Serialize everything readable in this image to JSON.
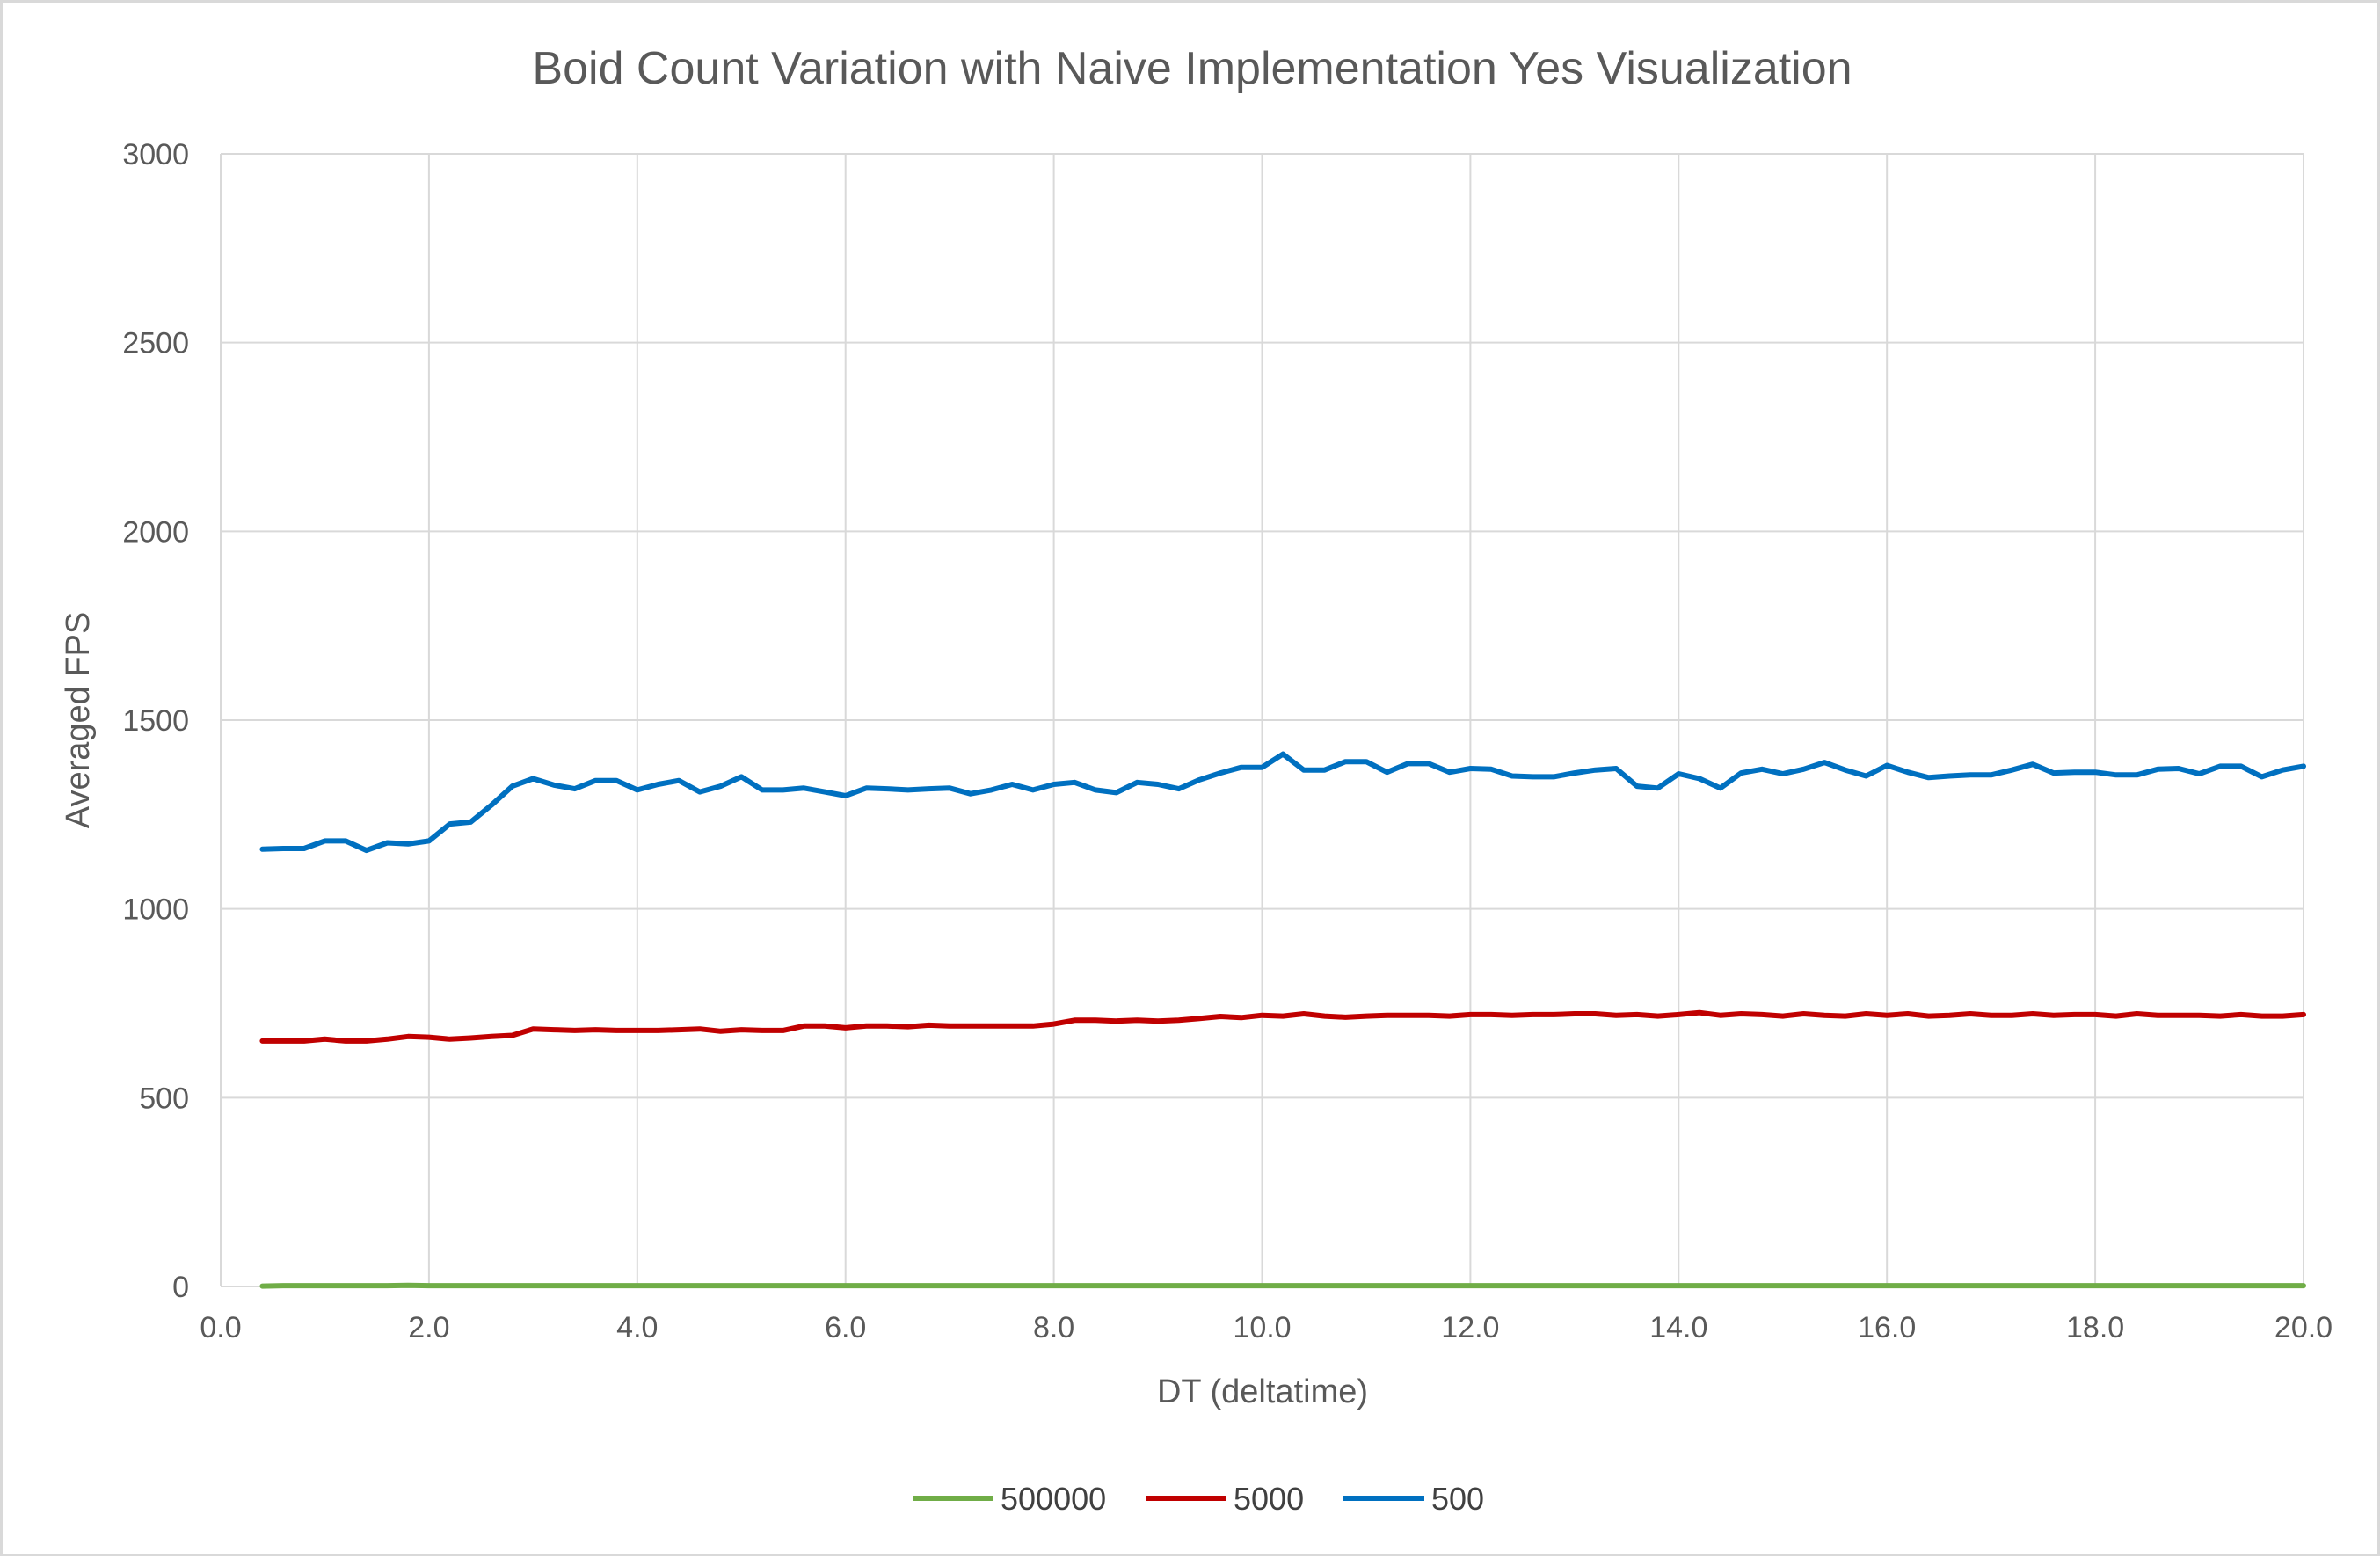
{
  "chart_data": {
    "type": "line",
    "title": "Boid Count Variation with Naive Implementation Yes Visualization",
    "xlabel": "DT (deltatime)",
    "ylabel": "Averaged FPS",
    "xlim": [
      0,
      20
    ],
    "ylim": [
      0,
      3000
    ],
    "x_ticks": [
      "0.0",
      "2.0",
      "4.0",
      "6.0",
      "8.0",
      "10.0",
      "12.0",
      "14.0",
      "16.0",
      "18.0",
      "20.0"
    ],
    "y_ticks": [
      "0",
      "500",
      "1000",
      "1500",
      "2000",
      "2500",
      "3000"
    ],
    "grid": true,
    "legend_position": "bottom",
    "x": [
      0.4,
      0.6,
      0.8,
      1.0,
      1.2,
      1.4,
      1.6,
      1.8,
      2.0,
      2.2,
      2.4,
      2.6,
      2.8,
      3.0,
      3.2,
      3.4,
      3.6,
      3.8,
      4.0,
      4.2,
      4.4,
      4.6,
      4.8,
      5.0,
      5.2,
      5.4,
      5.6,
      5.8,
      6.0,
      6.2,
      6.4,
      6.6,
      6.8,
      7.0,
      7.2,
      7.4,
      7.6,
      7.8,
      8.0,
      8.2,
      8.4,
      8.6,
      8.8,
      9.0,
      9.2,
      9.4,
      9.6,
      9.8,
      10.0,
      10.2,
      10.4,
      10.6,
      10.8,
      11.0,
      11.2,
      11.4,
      11.6,
      11.8,
      12.0,
      12.2,
      12.4,
      12.6,
      12.8,
      13.0,
      13.2,
      13.4,
      13.6,
      13.8,
      14.0,
      14.2,
      14.4,
      14.6,
      14.8,
      15.0,
      15.2,
      15.4,
      15.6,
      15.8,
      16.0,
      16.2,
      16.4,
      16.6,
      16.8,
      17.0,
      17.2,
      17.4,
      17.6,
      17.8,
      18.0,
      18.2,
      18.4,
      18.6,
      18.8,
      19.0,
      19.2,
      19.4,
      19.6,
      19.8,
      20.0
    ],
    "series": [
      {
        "name": "500000",
        "color": "#70ad47",
        "values": [
          1,
          2,
          2,
          2,
          2,
          2,
          2,
          3,
          2,
          2,
          2,
          2,
          2,
          2,
          2,
          2,
          2,
          2,
          2,
          2,
          2,
          2,
          2,
          2,
          2,
          2,
          2,
          2,
          2,
          2,
          2,
          2,
          2,
          2,
          2,
          2,
          2,
          2,
          2,
          2,
          2,
          2,
          2,
          2,
          2,
          2,
          2,
          2,
          2,
          2,
          2,
          2,
          2,
          2,
          2,
          2,
          2,
          2,
          2,
          2,
          2,
          2,
          2,
          2,
          2,
          2,
          2,
          2,
          2,
          2,
          2,
          2,
          2,
          2,
          2,
          2,
          2,
          2,
          2,
          2,
          2,
          2,
          2,
          2,
          2,
          2,
          2,
          2,
          2,
          2,
          2,
          2,
          2,
          2,
          2,
          2,
          2,
          2,
          2
        ]
      },
      {
        "name": "5000",
        "color": "#c00000",
        "values": [
          650,
          650,
          650,
          655,
          650,
          650,
          655,
          662,
          660,
          655,
          658,
          662,
          665,
          682,
          680,
          678,
          680,
          678,
          678,
          678,
          680,
          682,
          676,
          680,
          678,
          678,
          690,
          690,
          685,
          690,
          690,
          688,
          692,
          690,
          690,
          690,
          690,
          690,
          695,
          705,
          705,
          703,
          705,
          703,
          705,
          710,
          715,
          712,
          718,
          716,
          722,
          716,
          713,
          716,
          718,
          718,
          718,
          716,
          720,
          720,
          718,
          720,
          720,
          722,
          722,
          718,
          720,
          716,
          720,
          725,
          718,
          722,
          720,
          716,
          722,
          718,
          716,
          722,
          718,
          722,
          716,
          718,
          722,
          718,
          718,
          722,
          718,
          720,
          720,
          716,
          722,
          718,
          718,
          718,
          716,
          720,
          716,
          716,
          720
        ]
      },
      {
        "name": "500",
        "color": "#0070c0",
        "values": [
          1158,
          1160,
          1160,
          1180,
          1180,
          1155,
          1175,
          1172,
          1180,
          1225,
          1230,
          1275,
          1325,
          1345,
          1328,
          1318,
          1340,
          1340,
          1315,
          1330,
          1340,
          1310,
          1325,
          1350,
          1315,
          1315,
          1320,
          1310,
          1300,
          1320,
          1318,
          1315,
          1318,
          1320,
          1305,
          1315,
          1330,
          1315,
          1330,
          1335,
          1315,
          1308,
          1335,
          1330,
          1318,
          1342,
          1360,
          1375,
          1375,
          1410,
          1368,
          1368,
          1390,
          1390,
          1362,
          1385,
          1385,
          1362,
          1372,
          1370,
          1352,
          1350,
          1350,
          1360,
          1368,
          1372,
          1325,
          1320,
          1358,
          1345,
          1320,
          1360,
          1370,
          1358,
          1370,
          1388,
          1368,
          1352,
          1380,
          1362,
          1348,
          1352,
          1355,
          1355,
          1368,
          1383,
          1360,
          1362,
          1362,
          1355,
          1355,
          1370,
          1372,
          1358,
          1378,
          1378,
          1350,
          1368,
          1378
        ]
      }
    ]
  }
}
